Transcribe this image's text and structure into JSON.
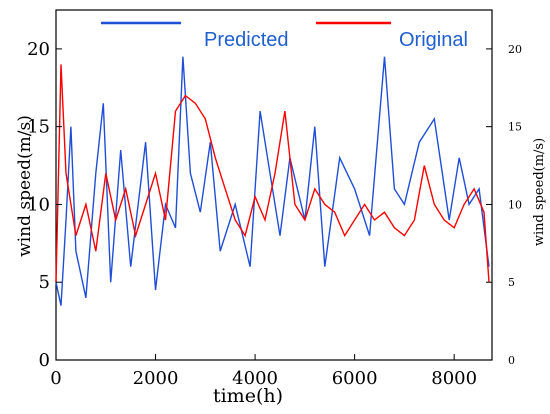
{
  "chart_data": {
    "type": "line",
    "xlabel": "time(h)",
    "ylabel": "wind speed(m/s)",
    "ylabel_right": "wind speed(m/s)",
    "xlim": [
      0,
      8760
    ],
    "ylim": [
      0,
      22.5
    ],
    "x_ticks": [
      0,
      2000,
      4000,
      6000,
      8000
    ],
    "y_ticks_left": [
      0,
      5,
      10,
      15,
      20
    ],
    "y_ticks_right": [
      0,
      5,
      10,
      15,
      20
    ],
    "legend_position": "top",
    "grid": false,
    "series": [
      {
        "name": "Predicted",
        "color": "#1f4fd6",
        "points": [
          [
            0,
            5.0
          ],
          [
            100,
            3.5
          ],
          [
            200,
            9.0
          ],
          [
            300,
            15.0
          ],
          [
            400,
            7.0
          ],
          [
            600,
            4.0
          ],
          [
            800,
            12.0
          ],
          [
            950,
            16.5
          ],
          [
            1100,
            5.0
          ],
          [
            1300,
            13.5
          ],
          [
            1500,
            6.0
          ],
          [
            1800,
            14.0
          ],
          [
            2000,
            4.5
          ],
          [
            2200,
            10.0
          ],
          [
            2400,
            8.5
          ],
          [
            2550,
            19.5
          ],
          [
            2700,
            12.0
          ],
          [
            2900,
            9.5
          ],
          [
            3100,
            14.0
          ],
          [
            3300,
            7.0
          ],
          [
            3600,
            10.0
          ],
          [
            3900,
            6.0
          ],
          [
            4100,
            16.0
          ],
          [
            4300,
            12.0
          ],
          [
            4500,
            8.0
          ],
          [
            4700,
            13.0
          ],
          [
            5000,
            9.0
          ],
          [
            5200,
            15.0
          ],
          [
            5400,
            6.0
          ],
          [
            5700,
            13.0
          ],
          [
            6000,
            11.0
          ],
          [
            6300,
            8.0
          ],
          [
            6600,
            19.5
          ],
          [
            6800,
            11.0
          ],
          [
            7000,
            10.0
          ],
          [
            7300,
            14.0
          ],
          [
            7600,
            15.5
          ],
          [
            7900,
            9.0
          ],
          [
            8100,
            13.0
          ],
          [
            8300,
            10.0
          ],
          [
            8500,
            11.0
          ],
          [
            8700,
            6.0
          ]
        ]
      },
      {
        "name": "Original",
        "color": "#ff0000",
        "points": [
          [
            0,
            5.0
          ],
          [
            100,
            19.0
          ],
          [
            200,
            12.0
          ],
          [
            400,
            8.0
          ],
          [
            600,
            10.0
          ],
          [
            800,
            7.0
          ],
          [
            1000,
            12.0
          ],
          [
            1200,
            9.0
          ],
          [
            1400,
            11.0
          ],
          [
            1600,
            8.0
          ],
          [
            1800,
            10.0
          ],
          [
            2000,
            12.0
          ],
          [
            2200,
            9.0
          ],
          [
            2400,
            16.0
          ],
          [
            2600,
            17.0
          ],
          [
            2800,
            16.5
          ],
          [
            3000,
            15.5
          ],
          [
            3200,
            13.0
          ],
          [
            3400,
            11.0
          ],
          [
            3600,
            9.0
          ],
          [
            3800,
            8.0
          ],
          [
            4000,
            10.5
          ],
          [
            4200,
            9.0
          ],
          [
            4400,
            12.0
          ],
          [
            4600,
            16.0
          ],
          [
            4800,
            10.0
          ],
          [
            5000,
            9.0
          ],
          [
            5200,
            11.0
          ],
          [
            5400,
            10.0
          ],
          [
            5600,
            9.5
          ],
          [
            5800,
            8.0
          ],
          [
            6000,
            9.0
          ],
          [
            6200,
            10.0
          ],
          [
            6400,
            9.0
          ],
          [
            6600,
            9.5
          ],
          [
            6800,
            8.5
          ],
          [
            7000,
            8.0
          ],
          [
            7200,
            9.0
          ],
          [
            7400,
            12.5
          ],
          [
            7600,
            10.0
          ],
          [
            7800,
            9.0
          ],
          [
            8000,
            8.5
          ],
          [
            8200,
            10.0
          ],
          [
            8400,
            11.0
          ],
          [
            8600,
            9.5
          ],
          [
            8700,
            5.0
          ]
        ]
      }
    ]
  }
}
